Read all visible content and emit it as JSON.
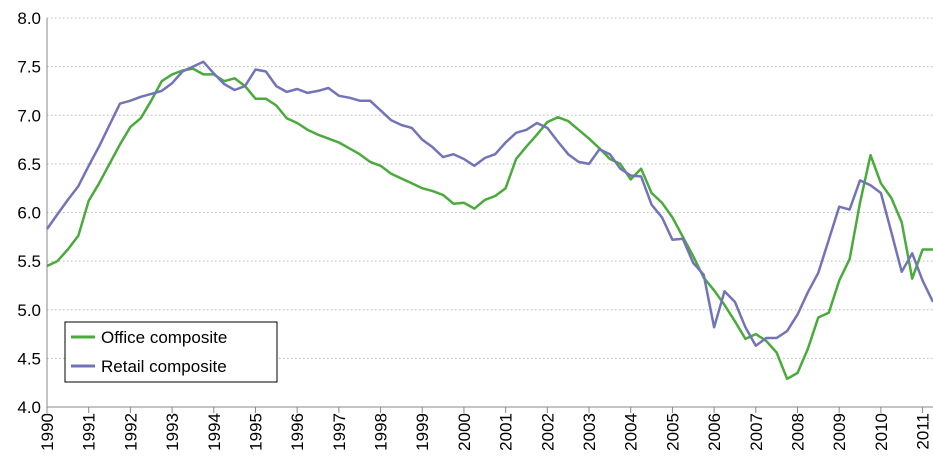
{
  "chart_data": {
    "type": "line",
    "x": [
      1990,
      1990.25,
      1990.5,
      1990.75,
      1991,
      1991.25,
      1991.5,
      1991.75,
      1992,
      1992.25,
      1992.5,
      1992.75,
      1993,
      1993.25,
      1993.5,
      1993.75,
      1994,
      1994.25,
      1994.5,
      1994.75,
      1995,
      1995.25,
      1995.5,
      1995.75,
      1996,
      1996.25,
      1996.5,
      1996.75,
      1997,
      1997.25,
      1997.5,
      1997.75,
      1998,
      1998.25,
      1998.5,
      1998.75,
      1999,
      1999.25,
      1999.5,
      1999.75,
      2000,
      2000.25,
      2000.5,
      2000.75,
      2001,
      2001.25,
      2001.5,
      2001.75,
      2002,
      2002.25,
      2002.5,
      2002.75,
      2003,
      2003.25,
      2003.5,
      2003.75,
      2004,
      2004.25,
      2004.5,
      2004.75,
      2005,
      2005.25,
      2005.5,
      2005.75,
      2006,
      2006.25,
      2006.5,
      2006.75,
      2007,
      2007.25,
      2007.5,
      2007.75,
      2008,
      2008.25,
      2008.5,
      2008.75,
      2009,
      2009.25,
      2009.5,
      2009.75,
      2010,
      2010.25,
      2010.5,
      2010.75,
      2011,
      2011.25
    ],
    "series": [
      {
        "name": "Office composite",
        "color": "#4aaa3c",
        "values": [
          5.45,
          5.5,
          5.62,
          5.76,
          6.12,
          6.3,
          6.5,
          6.7,
          6.88,
          6.97,
          7.15,
          7.35,
          7.42,
          7.46,
          7.48,
          7.42,
          7.42,
          7.35,
          7.38,
          7.3,
          7.17,
          7.17,
          7.1,
          6.97,
          6.92,
          6.85,
          6.8,
          6.76,
          6.72,
          6.66,
          6.6,
          6.52,
          6.48,
          6.4,
          6.35,
          6.3,
          6.25,
          6.22,
          6.18,
          6.09,
          6.1,
          6.04,
          6.13,
          6.17,
          6.25,
          6.55,
          6.68,
          6.8,
          6.93,
          6.98,
          6.94,
          6.85,
          6.76,
          6.66,
          6.55,
          6.5,
          6.34,
          6.45,
          6.2,
          6.1,
          5.95,
          5.75,
          5.55,
          5.33,
          5.2,
          5.05,
          4.88,
          4.7,
          4.75,
          4.68,
          4.56,
          4.29,
          4.35,
          4.6,
          4.92,
          4.97,
          5.3,
          5.52,
          6.1,
          6.59,
          6.3,
          6.15,
          5.9,
          5.32,
          5.62,
          5.62
        ]
      },
      {
        "name": "Retail composite",
        "color": "#7373b8",
        "values": [
          5.83,
          5.98,
          6.13,
          6.27,
          6.48,
          6.68,
          6.9,
          7.12,
          7.15,
          7.19,
          7.22,
          7.25,
          7.33,
          7.45,
          7.5,
          7.55,
          7.43,
          7.32,
          7.26,
          7.3,
          7.47,
          7.45,
          7.3,
          7.24,
          7.27,
          7.23,
          7.25,
          7.28,
          7.2,
          7.18,
          7.15,
          7.15,
          7.05,
          6.95,
          6.9,
          6.87,
          6.75,
          6.67,
          6.57,
          6.6,
          6.55,
          6.48,
          6.56,
          6.6,
          6.72,
          6.82,
          6.85,
          6.92,
          6.87,
          6.73,
          6.6,
          6.52,
          6.5,
          6.65,
          6.6,
          6.45,
          6.38,
          6.37,
          6.08,
          5.95,
          5.72,
          5.73,
          5.48,
          5.36,
          4.82,
          5.19,
          5.08,
          4.82,
          4.63,
          4.71,
          4.71,
          4.78,
          4.95,
          5.18,
          5.38,
          5.72,
          6.06,
          6.03,
          6.33,
          6.28,
          6.2,
          5.8,
          5.39,
          5.58,
          5.3,
          5.08
        ]
      }
    ],
    "xlim": [
      1990,
      2011.25
    ],
    "xticks": [
      1990,
      1991,
      1992,
      1993,
      1994,
      1995,
      1996,
      1997,
      1998,
      1999,
      2000,
      2001,
      2002,
      2003,
      2004,
      2005,
      2006,
      2007,
      2008,
      2009,
      2010,
      2011
    ],
    "ylim": [
      4,
      8
    ],
    "yticks": [
      {
        "value": 4,
        "label": "4.0"
      },
      {
        "value": 4.5,
        "label": "4.5"
      },
      {
        "value": 5,
        "label": "5.0"
      },
      {
        "value": 5.5,
        "label": "5.5"
      },
      {
        "value": 6,
        "label": "6.0"
      },
      {
        "value": 6.5,
        "label": "6.5"
      },
      {
        "value": 7,
        "label": "7.0"
      },
      {
        "value": 7.5,
        "label": "7.5"
      },
      {
        "value": 8,
        "label": "8.0"
      }
    ],
    "grid": true,
    "legend": "lower left"
  }
}
